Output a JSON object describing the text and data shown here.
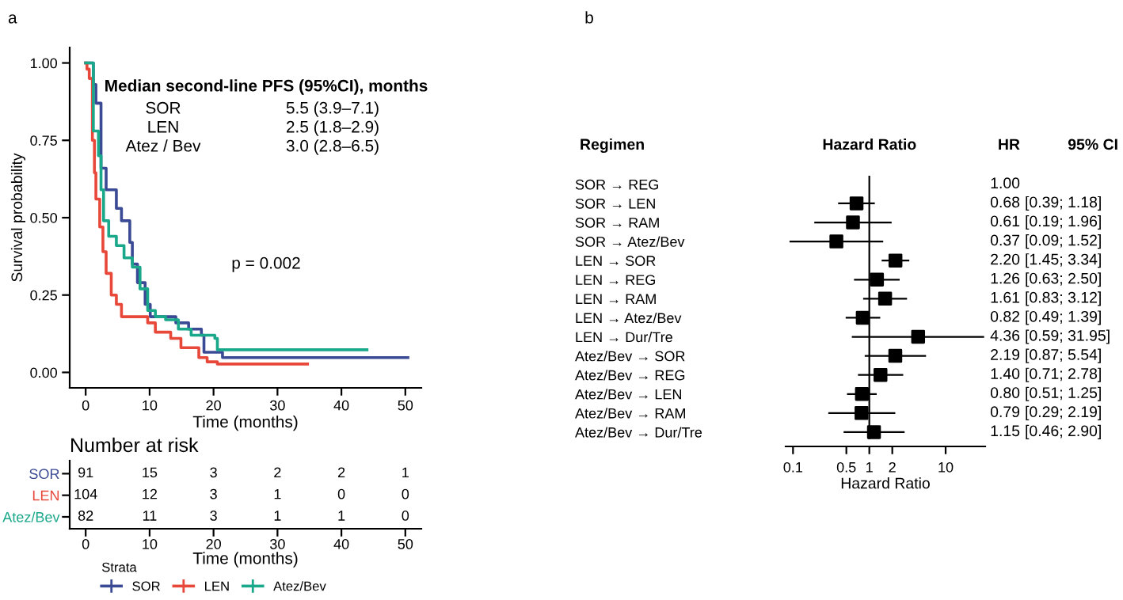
{
  "chart_data": [
    {
      "type": "step",
      "xlabel": "Time (months)",
      "ylabel": "Survival probability",
      "legend_title": "Strata",
      "legend": "bottom",
      "line_style": "solid",
      "xlim": [
        -2.5,
        52.5
      ],
      "xticks": [
        0,
        10,
        20,
        30,
        40,
        50
      ],
      "ylim": [
        -0.05,
        1.05
      ],
      "yticks": [
        {
          "value": 0,
          "label": "0.00"
        },
        {
          "value": 0.25,
          "label": "0.25"
        },
        {
          "value": 0.5,
          "label": "0.50"
        },
        {
          "value": 0.75,
          "label": "0.75"
        },
        {
          "value": 1,
          "label": "1.00"
        }
      ],
      "annotations": [
        "a",
        "Median second-line PFS (95%CI), months",
        "SOR",
        "5.5 (3.9–7.1)",
        "LEN",
        "2.5 (1.8–2.9)",
        "Atez / Bev",
        "3.0 (2.8–6.5)",
        "p = 0.002"
      ],
      "series": [
        {
          "name": "SOR",
          "color": "#3b4a94",
          "x": [
            0,
            1.2,
            1.6,
            2.4,
            3.2,
            4.8,
            5.6,
            6.9,
            7.3,
            8.1,
            9.3,
            10.1,
            12.5,
            14.1,
            16.1,
            18.1,
            18.5,
            21.4,
            50.4
          ],
          "values": [
            1,
            0.93,
            0.87,
            0.66,
            0.59,
            0.53,
            0.49,
            0.42,
            0.35,
            0.29,
            0.22,
            0.18,
            0.18,
            0.16,
            0.14,
            0.12,
            0.065,
            0.048,
            0.048
          ]
        },
        {
          "name": "LEN",
          "color": "#e8483a",
          "x": [
            0,
            0.2,
            0.56,
            1.05,
            1.37,
            1.6,
            2.2,
            2.7,
            3.2,
            4.0,
            4.8,
            5.6,
            9.3,
            9.7,
            10.9,
            13.3,
            14.9,
            17.7,
            19.0,
            20.6,
            34.7
          ],
          "values": [
            1,
            0.98,
            0.95,
            0.75,
            0.645,
            0.56,
            0.47,
            0.39,
            0.32,
            0.25,
            0.22,
            0.18,
            0.18,
            0.16,
            0.13,
            0.11,
            0.08,
            0.048,
            0.034,
            0.027,
            0.027
          ]
        },
        {
          "name": "Atez/Bev",
          "color": "#1aa88a",
          "x": [
            0,
            1.2,
            2.0,
            2.4,
            2.8,
            3.6,
            4.8,
            6.0,
            7.3,
            8.5,
            9.7,
            10.9,
            12.5,
            14.5,
            16.5,
            20.2,
            20.6,
            44.0
          ],
          "values": [
            1,
            0.78,
            0.7,
            0.59,
            0.49,
            0.44,
            0.41,
            0.37,
            0.34,
            0.27,
            0.2,
            0.18,
            0.17,
            0.14,
            0.12,
            0.11,
            0.073,
            0.073
          ]
        }
      ]
    },
    {
      "type": "heatmap",
      "title": "Number at risk",
      "xlabel": "Time (months)",
      "data_labels": true,
      "categories": [
        "0",
        "10",
        "20",
        "30",
        "40",
        "50"
      ],
      "y_categories": [
        "SOR",
        "LEN",
        "Atez/Bev"
      ],
      "cells": [
        [
          91,
          15,
          3,
          2,
          2,
          1
        ],
        [
          104,
          12,
          3,
          1,
          0,
          0
        ],
        [
          82,
          11,
          3,
          1,
          1,
          0
        ]
      ]
    },
    {
      "type": "scatter",
      "orientation": "horizontal",
      "title": "Hazard Ratio",
      "xlabel": "Hazard Ratio",
      "ylabel": "Regimen",
      "marker": "square",
      "color": "#000000",
      "log": "x",
      "xlim": [
        0.08,
        33
      ],
      "xticks": [
        0.1,
        0.5,
        1,
        2,
        10
      ],
      "categories": [
        "SOR → REG",
        "SOR → LEN",
        "SOR → RAM",
        "SOR → Atez/Bev",
        "LEN → SOR",
        "LEN → REG",
        "LEN → RAM",
        "LEN → Atez/Bev",
        "LEN → Dur/Tre",
        "Atez/Bev → SOR",
        "Atez/Bev → REG",
        "Atez/Bev → LEN",
        "Atez/Bev → RAM",
        "Atez/Bev → Dur/Tre"
      ],
      "values": [
        null,
        0.68,
        0.61,
        0.37,
        2.2,
        1.26,
        1.61,
        0.82,
        4.36,
        2.19,
        1.4,
        0.8,
        0.79,
        1.15
      ],
      "errors": [
        null,
        [
          0.39,
          1.18
        ],
        [
          0.19,
          1.96
        ],
        [
          0.09,
          1.52
        ],
        [
          1.45,
          3.34
        ],
        [
          0.63,
          2.5
        ],
        [
          0.83,
          3.12
        ],
        [
          0.49,
          1.39
        ],
        [
          0.59,
          31.95
        ],
        [
          0.87,
          5.54
        ],
        [
          0.71,
          2.78
        ],
        [
          0.51,
          1.25
        ],
        [
          0.29,
          2.19
        ],
        [
          0.46,
          2.9
        ]
      ],
      "value_labels": [
        "1.00",
        "0.68",
        "0.61",
        "0.37",
        "2.20",
        "1.26",
        "1.61",
        "0.82",
        "4.36",
        "2.19",
        "1.40",
        "0.80",
        "0.79",
        "1.15"
      ],
      "ref_lines": [
        {
          "axis": "x",
          "value": 1,
          "color": "#000000"
        }
      ],
      "annotations": [
        "b",
        "HR",
        "95% CI",
        "[0.39; 1.18]",
        "[0.19; 1.96]",
        "[0.09; 1.52]",
        "[1.45; 3.34]",
        "[0.63; 2.50]",
        "[0.83; 3.12]",
        "[0.49; 1.39]",
        "[0.59; 31.95]",
        "[0.87; 5.54]",
        "[0.71; 2.78]",
        "[0.51; 1.25]",
        "[0.29; 2.19]",
        "[0.46; 2.90]"
      ]
    }
  ]
}
